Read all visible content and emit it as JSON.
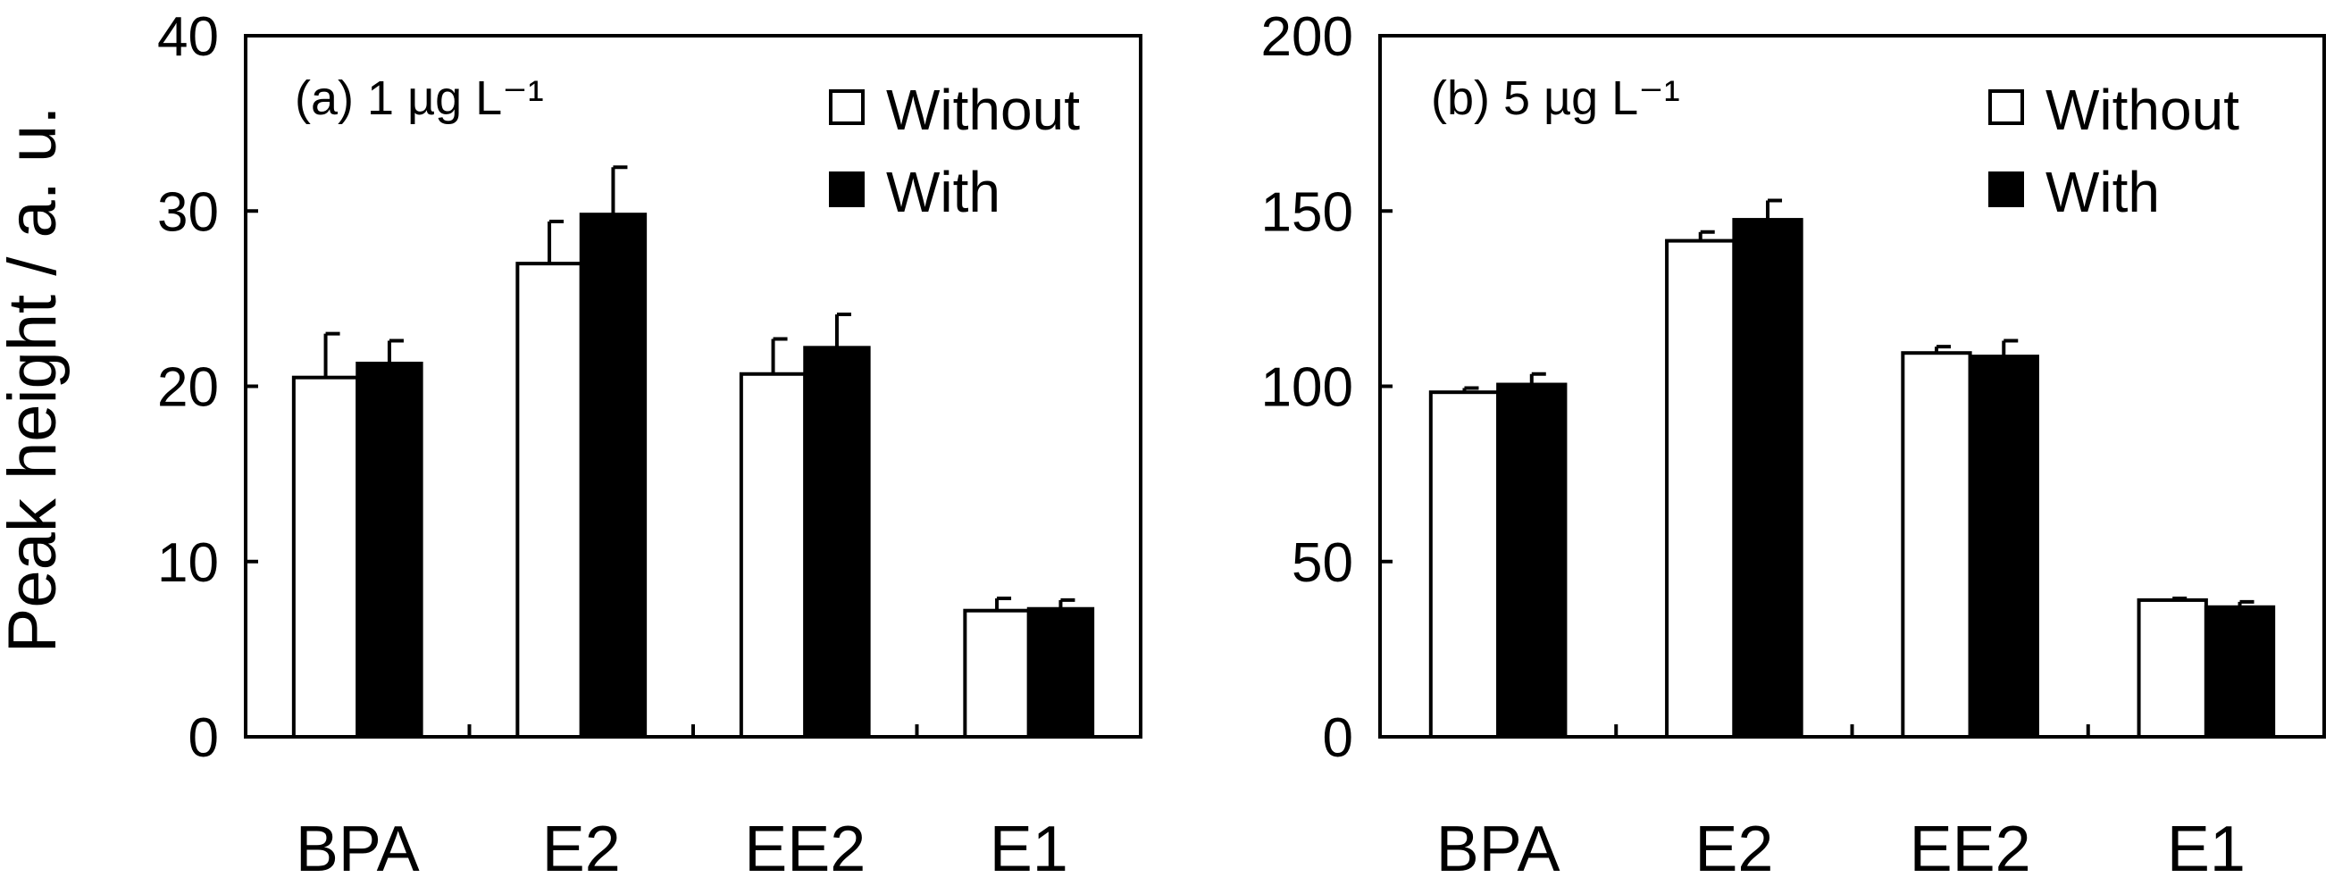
{
  "ylabel": "Peak height / a. u.",
  "legend_labels": [
    "Without",
    "With"
  ],
  "colors": {
    "without": "#ffffff",
    "with": "#000000",
    "axis": "#000000"
  },
  "chart_data": [
    {
      "type": "bar",
      "title": "(a) 1 µg L⁻¹",
      "categories": [
        "BPA",
        "E2",
        "EE2",
        "E1"
      ],
      "ylim": [
        0,
        40
      ],
      "yticks": [
        0,
        10,
        20,
        30,
        40
      ],
      "legend": "top-right",
      "series": [
        {
          "name": "Without",
          "values": [
            20.5,
            27.0,
            20.7,
            7.2
          ],
          "errors": [
            2.5,
            2.4,
            2.0,
            0.7
          ]
        },
        {
          "name": "With",
          "values": [
            21.3,
            29.8,
            22.2,
            7.3
          ],
          "errors": [
            1.3,
            2.7,
            1.9,
            0.5
          ]
        }
      ]
    },
    {
      "type": "bar",
      "title": "(b) 5 µg L⁻¹",
      "categories": [
        "BPA",
        "E2",
        "EE2",
        "E1"
      ],
      "ylim": [
        0,
        200
      ],
      "yticks": [
        0,
        50,
        100,
        150,
        200
      ],
      "legend": "top-right",
      "series": [
        {
          "name": "Without",
          "values": [
            98.3,
            141.5,
            109.5,
            39.0
          ],
          "errors": [
            1.2,
            2.5,
            1.8,
            0.5
          ]
        },
        {
          "name": "With",
          "values": [
            100.5,
            147.5,
            108.5,
            37.0
          ],
          "errors": [
            3.0,
            5.5,
            4.5,
            1.5
          ]
        }
      ]
    }
  ]
}
